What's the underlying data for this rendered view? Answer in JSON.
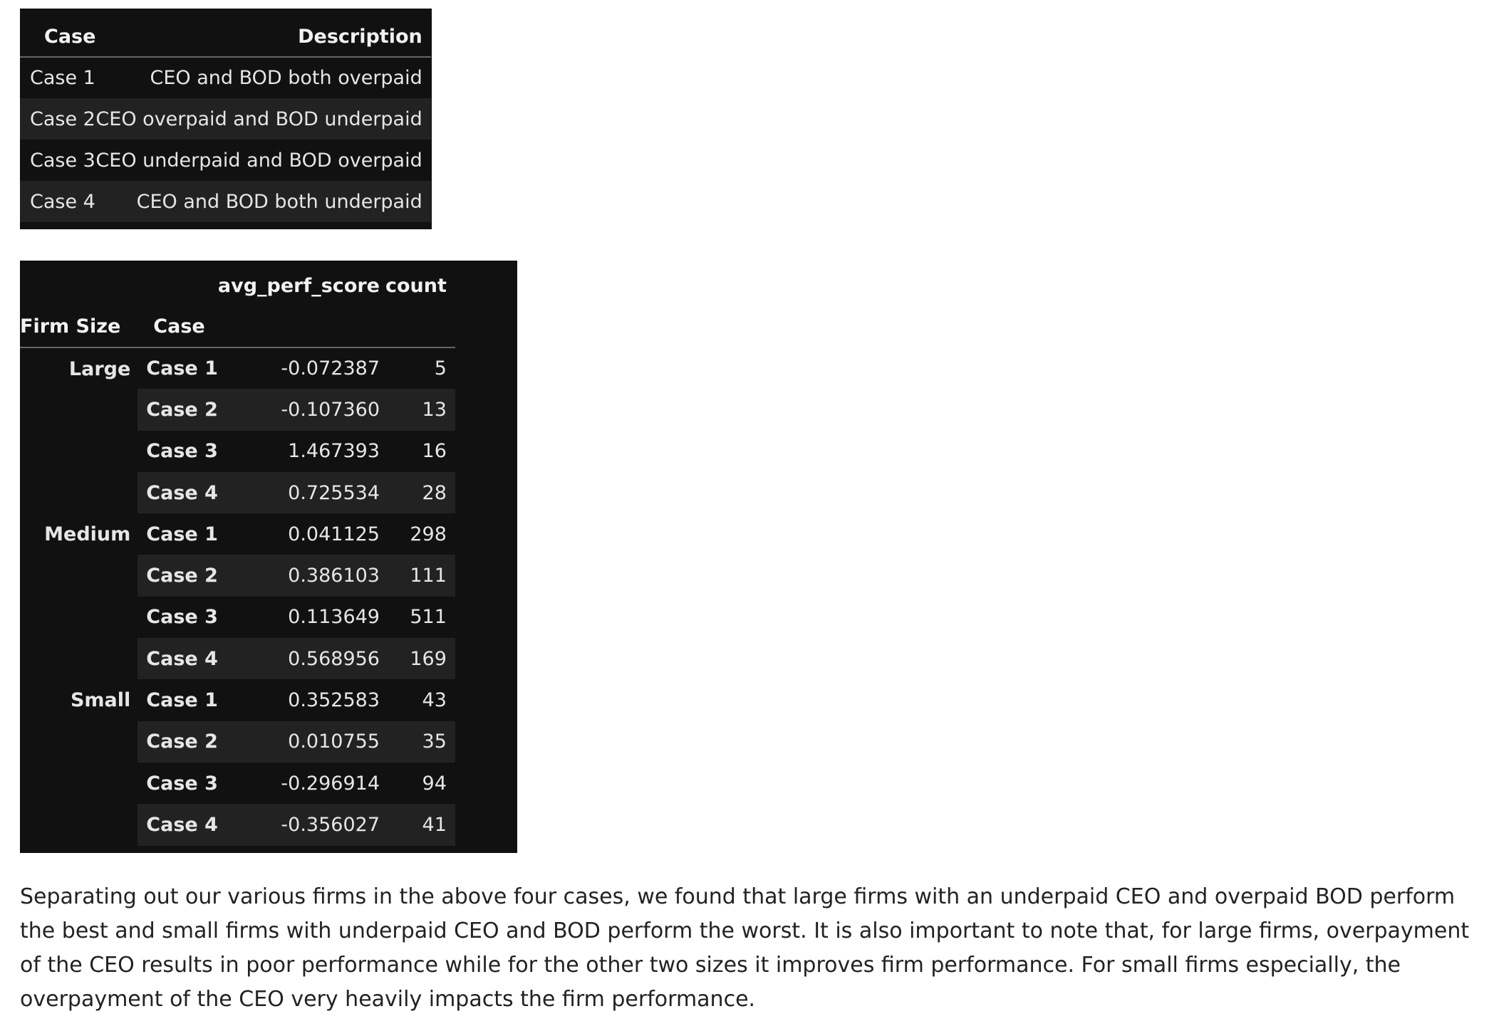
{
  "cases_table": {
    "headers": {
      "case": "Case",
      "description": "Description"
    },
    "rows": [
      {
        "case": "Case 1",
        "description": "CEO and BOD both overpaid"
      },
      {
        "case": "Case 2",
        "description": "CEO overpaid and BOD underpaid"
      },
      {
        "case": "Case 3",
        "description": "CEO underpaid and BOD overpaid"
      },
      {
        "case": "Case 4",
        "description": "CEO and BOD both underpaid"
      }
    ]
  },
  "perf_table": {
    "columns": {
      "score": "avg_perf_score",
      "count": "count"
    },
    "index_headers": {
      "size": "Firm Size",
      "case": "Case"
    },
    "rows": [
      {
        "size": "Large",
        "case": "Case 1",
        "score": "-0.072387",
        "count": "5"
      },
      {
        "size": "",
        "case": "Case 2",
        "score": "-0.107360",
        "count": "13"
      },
      {
        "size": "",
        "case": "Case 3",
        "score": "1.467393",
        "count": "16"
      },
      {
        "size": "",
        "case": "Case 4",
        "score": "0.725534",
        "count": "28"
      },
      {
        "size": "Medium",
        "case": "Case 1",
        "score": "0.041125",
        "count": "298"
      },
      {
        "size": "",
        "case": "Case 2",
        "score": "0.386103",
        "count": "111"
      },
      {
        "size": "",
        "case": "Case 3",
        "score": "0.113649",
        "count": "511"
      },
      {
        "size": "",
        "case": "Case 4",
        "score": "0.568956",
        "count": "169"
      },
      {
        "size": "Small",
        "case": "Case 1",
        "score": "0.352583",
        "count": "43"
      },
      {
        "size": "",
        "case": "Case 2",
        "score": "0.010755",
        "count": "35"
      },
      {
        "size": "",
        "case": "Case 3",
        "score": "-0.296914",
        "count": "94"
      },
      {
        "size": "",
        "case": "Case 4",
        "score": "-0.356027",
        "count": "41"
      }
    ]
  },
  "summary": "Separating out our various firms in the above four cases, we found that large firms with an underpaid CEO and overpaid BOD perform the best and small firms with underpaid CEO and BOD perform the worst. It is also important to note that, for large firms, overpayment of the CEO results in poor performance while for the other two sizes it improves firm performance. For small firms especially, the overpayment of the CEO very heavily impacts the firm performance.",
  "colors": {
    "panel_bg": "#111111",
    "stripe_bg": "#222222",
    "text_light": "#e6e6e6",
    "text_dark": "#222222"
  }
}
